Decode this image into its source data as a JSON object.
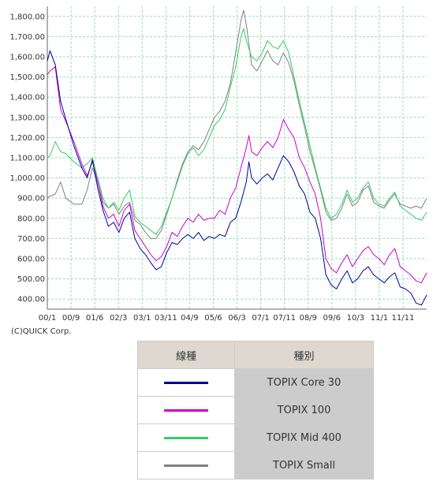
{
  "chart_data": {
    "type": "line",
    "title": "",
    "xlabel": "",
    "ylabel": "",
    "x_ticks": [
      "00/1",
      "00/9",
      "01/6",
      "02/3",
      "03/1",
      "03/11",
      "04/9",
      "05/6",
      "06/3",
      "07/1",
      "07/11",
      "08/9",
      "09/6",
      "10/3",
      "11/1",
      "11/11"
    ],
    "y_ticks": [
      "400.00",
      "500.00",
      "600.00",
      "700.00",
      "800.00",
      "900.00",
      "1,000.00",
      "1,100.00",
      "1,200.00",
      "1,300.00",
      "1,400.00",
      "1,500.00",
      "1,600.00",
      "1,700.00",
      "1,800.00"
    ],
    "ylim": [
      350,
      1850
    ],
    "xlim": [
      0,
      143
    ],
    "grid": true,
    "series": [
      {
        "name": "TOPIX Core 30",
        "color": "#000099",
        "points": [
          [
            0,
            1580
          ],
          [
            1,
            1630
          ],
          [
            3,
            1560
          ],
          [
            5,
            1380
          ],
          [
            7,
            1290
          ],
          [
            10,
            1160
          ],
          [
            13,
            1050
          ],
          [
            15,
            1000
          ],
          [
            17,
            1090
          ],
          [
            19,
            950
          ],
          [
            21,
            840
          ],
          [
            23,
            760
          ],
          [
            25,
            780
          ],
          [
            27,
            730
          ],
          [
            29,
            800
          ],
          [
            31,
            830
          ],
          [
            33,
            700
          ],
          [
            35,
            650
          ],
          [
            37,
            620
          ],
          [
            39,
            580
          ],
          [
            41,
            545
          ],
          [
            43,
            560
          ],
          [
            45,
            630
          ],
          [
            47,
            680
          ],
          [
            49,
            670
          ],
          [
            51,
            700
          ],
          [
            53,
            720
          ],
          [
            55,
            700
          ],
          [
            57,
            730
          ],
          [
            59,
            690
          ],
          [
            61,
            710
          ],
          [
            63,
            700
          ],
          [
            65,
            720
          ],
          [
            67,
            710
          ],
          [
            69,
            780
          ],
          [
            71,
            800
          ],
          [
            73,
            880
          ],
          [
            75,
            980
          ],
          [
            76,
            1080
          ],
          [
            77,
            1000
          ],
          [
            79,
            970
          ],
          [
            81,
            1000
          ],
          [
            83,
            1020
          ],
          [
            85,
            990
          ],
          [
            87,
            1050
          ],
          [
            89,
            1110
          ],
          [
            91,
            1080
          ],
          [
            93,
            1030
          ],
          [
            95,
            960
          ],
          [
            97,
            920
          ],
          [
            99,
            830
          ],
          [
            101,
            800
          ],
          [
            103,
            700
          ],
          [
            105,
            520
          ],
          [
            107,
            470
          ],
          [
            109,
            450
          ],
          [
            111,
            500
          ],
          [
            113,
            540
          ],
          [
            115,
            480
          ],
          [
            117,
            500
          ],
          [
            119,
            540
          ],
          [
            121,
            560
          ],
          [
            123,
            520
          ],
          [
            125,
            500
          ],
          [
            127,
            480
          ],
          [
            129,
            510
          ],
          [
            131,
            530
          ],
          [
            133,
            460
          ],
          [
            135,
            450
          ],
          [
            137,
            430
          ],
          [
            139,
            380
          ],
          [
            141,
            370
          ],
          [
            143,
            420
          ]
        ]
      },
      {
        "name": "TOPIX 100",
        "color": "#cc00cc",
        "points": [
          [
            0,
            1510
          ],
          [
            1,
            1530
          ],
          [
            3,
            1550
          ],
          [
            5,
            1340
          ],
          [
            7,
            1280
          ],
          [
            10,
            1180
          ],
          [
            13,
            1070
          ],
          [
            15,
            1010
          ],
          [
            17,
            1080
          ],
          [
            19,
            980
          ],
          [
            21,
            860
          ],
          [
            23,
            800
          ],
          [
            25,
            820
          ],
          [
            27,
            760
          ],
          [
            29,
            840
          ],
          [
            31,
            870
          ],
          [
            33,
            740
          ],
          [
            35,
            700
          ],
          [
            37,
            660
          ],
          [
            39,
            620
          ],
          [
            41,
            590
          ],
          [
            43,
            610
          ],
          [
            45,
            660
          ],
          [
            47,
            730
          ],
          [
            49,
            710
          ],
          [
            51,
            760
          ],
          [
            53,
            800
          ],
          [
            55,
            780
          ],
          [
            57,
            820
          ],
          [
            59,
            790
          ],
          [
            61,
            800
          ],
          [
            63,
            800
          ],
          [
            65,
            840
          ],
          [
            67,
            820
          ],
          [
            69,
            900
          ],
          [
            71,
            950
          ],
          [
            73,
            1050
          ],
          [
            75,
            1150
          ],
          [
            76,
            1210
          ],
          [
            77,
            1130
          ],
          [
            79,
            1110
          ],
          [
            81,
            1150
          ],
          [
            83,
            1180
          ],
          [
            85,
            1150
          ],
          [
            87,
            1200
          ],
          [
            89,
            1290
          ],
          [
            91,
            1240
          ],
          [
            93,
            1200
          ],
          [
            95,
            1100
          ],
          [
            97,
            1050
          ],
          [
            99,
            980
          ],
          [
            101,
            920
          ],
          [
            103,
            800
          ],
          [
            105,
            600
          ],
          [
            107,
            550
          ],
          [
            109,
            530
          ],
          [
            111,
            580
          ],
          [
            113,
            620
          ],
          [
            115,
            560
          ],
          [
            117,
            600
          ],
          [
            119,
            640
          ],
          [
            121,
            660
          ],
          [
            123,
            620
          ],
          [
            125,
            600
          ],
          [
            127,
            570
          ],
          [
            129,
            620
          ],
          [
            131,
            650
          ],
          [
            133,
            560
          ],
          [
            135,
            540
          ],
          [
            137,
            520
          ],
          [
            139,
            490
          ],
          [
            141,
            480
          ],
          [
            143,
            530
          ]
        ]
      },
      {
        "name": "TOPIX Mid 400",
        "color": "#33cc66",
        "points": [
          [
            0,
            1100
          ],
          [
            1,
            1110
          ],
          [
            3,
            1180
          ],
          [
            5,
            1130
          ],
          [
            7,
            1120
          ],
          [
            10,
            1080
          ],
          [
            13,
            1050
          ],
          [
            15,
            1070
          ],
          [
            17,
            1100
          ],
          [
            19,
            1000
          ],
          [
            21,
            900
          ],
          [
            23,
            850
          ],
          [
            25,
            880
          ],
          [
            27,
            840
          ],
          [
            29,
            900
          ],
          [
            31,
            940
          ],
          [
            33,
            810
          ],
          [
            35,
            780
          ],
          [
            37,
            760
          ],
          [
            39,
            740
          ],
          [
            41,
            720
          ],
          [
            43,
            760
          ],
          [
            45,
            830
          ],
          [
            47,
            900
          ],
          [
            49,
            980
          ],
          [
            51,
            1060
          ],
          [
            53,
            1120
          ],
          [
            55,
            1150
          ],
          [
            57,
            1110
          ],
          [
            59,
            1140
          ],
          [
            61,
            1200
          ],
          [
            63,
            1260
          ],
          [
            65,
            1290
          ],
          [
            67,
            1340
          ],
          [
            69,
            1450
          ],
          [
            71,
            1550
          ],
          [
            73,
            1700
          ],
          [
            74,
            1740
          ],
          [
            75,
            1680
          ],
          [
            77,
            1600
          ],
          [
            79,
            1580
          ],
          [
            81,
            1620
          ],
          [
            83,
            1680
          ],
          [
            85,
            1650
          ],
          [
            87,
            1640
          ],
          [
            89,
            1680
          ],
          [
            91,
            1620
          ],
          [
            93,
            1500
          ],
          [
            95,
            1380
          ],
          [
            97,
            1270
          ],
          [
            99,
            1160
          ],
          [
            101,
            1050
          ],
          [
            103,
            950
          ],
          [
            105,
            850
          ],
          [
            107,
            800
          ],
          [
            109,
            820
          ],
          [
            111,
            870
          ],
          [
            113,
            940
          ],
          [
            115,
            880
          ],
          [
            117,
            900
          ],
          [
            119,
            950
          ],
          [
            121,
            980
          ],
          [
            123,
            900
          ],
          [
            125,
            870
          ],
          [
            127,
            860
          ],
          [
            129,
            900
          ],
          [
            131,
            930
          ],
          [
            133,
            860
          ],
          [
            135,
            840
          ],
          [
            137,
            820
          ],
          [
            139,
            800
          ],
          [
            141,
            790
          ],
          [
            143,
            830
          ]
        ]
      },
      {
        "name": "TOPIX Small",
        "color": "#808080",
        "points": [
          [
            0,
            900
          ],
          [
            1,
            910
          ],
          [
            3,
            920
          ],
          [
            5,
            980
          ],
          [
            7,
            900
          ],
          [
            10,
            870
          ],
          [
            13,
            870
          ],
          [
            15,
            940
          ],
          [
            17,
            1050
          ],
          [
            19,
            980
          ],
          [
            21,
            880
          ],
          [
            23,
            850
          ],
          [
            25,
            870
          ],
          [
            27,
            820
          ],
          [
            29,
            860
          ],
          [
            31,
            880
          ],
          [
            33,
            790
          ],
          [
            35,
            770
          ],
          [
            37,
            730
          ],
          [
            39,
            700
          ],
          [
            41,
            700
          ],
          [
            43,
            740
          ],
          [
            45,
            820
          ],
          [
            47,
            900
          ],
          [
            49,
            990
          ],
          [
            51,
            1070
          ],
          [
            53,
            1130
          ],
          [
            55,
            1160
          ],
          [
            57,
            1140
          ],
          [
            59,
            1180
          ],
          [
            61,
            1240
          ],
          [
            63,
            1300
          ],
          [
            65,
            1330
          ],
          [
            67,
            1380
          ],
          [
            69,
            1470
          ],
          [
            71,
            1620
          ],
          [
            73,
            1780
          ],
          [
            74,
            1830
          ],
          [
            75,
            1760
          ],
          [
            77,
            1560
          ],
          [
            79,
            1530
          ],
          [
            81,
            1580
          ],
          [
            83,
            1630
          ],
          [
            85,
            1580
          ],
          [
            87,
            1560
          ],
          [
            89,
            1620
          ],
          [
            91,
            1570
          ],
          [
            93,
            1480
          ],
          [
            95,
            1360
          ],
          [
            97,
            1250
          ],
          [
            99,
            1130
          ],
          [
            101,
            1040
          ],
          [
            103,
            940
          ],
          [
            105,
            830
          ],
          [
            107,
            790
          ],
          [
            109,
            800
          ],
          [
            111,
            850
          ],
          [
            113,
            920
          ],
          [
            115,
            860
          ],
          [
            117,
            880
          ],
          [
            119,
            940
          ],
          [
            121,
            960
          ],
          [
            123,
            880
          ],
          [
            125,
            860
          ],
          [
            127,
            850
          ],
          [
            129,
            890
          ],
          [
            131,
            920
          ],
          [
            133,
            870
          ],
          [
            135,
            860
          ],
          [
            137,
            850
          ],
          [
            139,
            860
          ],
          [
            141,
            850
          ],
          [
            143,
            900
          ]
        ]
      }
    ]
  },
  "copyright": "(C)QUICK Corp.",
  "legend": {
    "header_line_type": "線種",
    "header_kind": "種別"
  }
}
